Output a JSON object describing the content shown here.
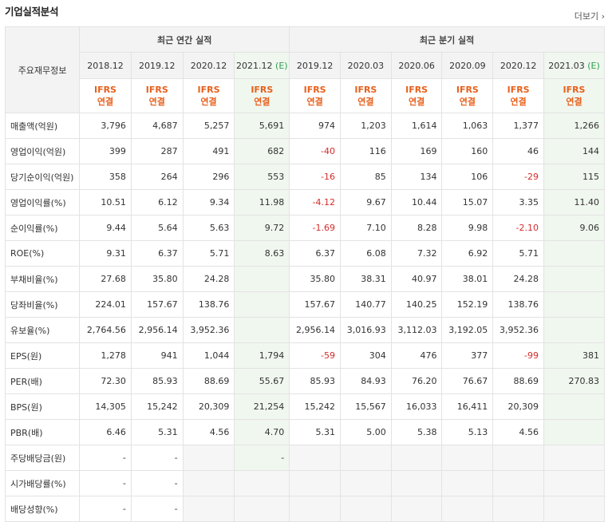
{
  "header": {
    "title": "기업실적분석",
    "more": "더보기"
  },
  "table": {
    "row_header": "주요재무정보",
    "annual_group": "최근 연간 실적",
    "quarter_group": "최근 분기 실적",
    "annual_dates": [
      "2018.12",
      "2019.12",
      "2020.12",
      "2021.12"
    ],
    "quarter_dates": [
      "2019.12",
      "2020.03",
      "2020.06",
      "2020.09",
      "2020.12",
      "2021.03"
    ],
    "estimate_mark": "(E)",
    "ifrs_line1": "IFRS",
    "ifrs_line2": "연결",
    "rows": [
      {
        "label": "매출액(억원)",
        "values": [
          "3,796",
          "4,687",
          "5,257",
          "5,691",
          "974",
          "1,203",
          "1,614",
          "1,063",
          "1,377",
          "1,266"
        ]
      },
      {
        "label": "영업이익(억원)",
        "values": [
          "399",
          "287",
          "491",
          "682",
          "-40",
          "116",
          "169",
          "160",
          "46",
          "144"
        ]
      },
      {
        "label": "당기순이익(억원)",
        "values": [
          "358",
          "264",
          "296",
          "553",
          "-16",
          "85",
          "134",
          "106",
          "-29",
          "115"
        ]
      },
      {
        "label": "영업이익률(%)",
        "values": [
          "10.51",
          "6.12",
          "9.34",
          "11.98",
          "-4.12",
          "9.67",
          "10.44",
          "15.07",
          "3.35",
          "11.40"
        ]
      },
      {
        "label": "순이익률(%)",
        "values": [
          "9.44",
          "5.64",
          "5.63",
          "9.72",
          "-1.69",
          "7.10",
          "8.28",
          "9.98",
          "-2.10",
          "9.06"
        ]
      },
      {
        "label": "ROE(%)",
        "values": [
          "9.31",
          "6.37",
          "5.71",
          "8.63",
          "6.37",
          "6.08",
          "7.32",
          "6.92",
          "5.71",
          ""
        ]
      },
      {
        "label": "부채비율(%)",
        "values": [
          "27.68",
          "35.80",
          "24.28",
          "",
          "35.80",
          "38.31",
          "40.97",
          "38.01",
          "24.28",
          ""
        ]
      },
      {
        "label": "당좌비율(%)",
        "values": [
          "224.01",
          "157.67",
          "138.76",
          "",
          "157.67",
          "140.77",
          "140.25",
          "152.19",
          "138.76",
          ""
        ]
      },
      {
        "label": "유보율(%)",
        "values": [
          "2,764.56",
          "2,956.14",
          "3,952.36",
          "",
          "2,956.14",
          "3,016.93",
          "3,112.03",
          "3,192.05",
          "3,952.36",
          ""
        ]
      },
      {
        "label": "EPS(원)",
        "values": [
          "1,278",
          "941",
          "1,044",
          "1,794",
          "-59",
          "304",
          "476",
          "377",
          "-99",
          "381"
        ]
      },
      {
        "label": "PER(배)",
        "values": [
          "72.30",
          "85.93",
          "88.69",
          "55.67",
          "85.93",
          "84.93",
          "76.20",
          "76.67",
          "88.69",
          "270.83"
        ]
      },
      {
        "label": "BPS(원)",
        "values": [
          "14,305",
          "15,242",
          "20,309",
          "21,254",
          "15,242",
          "15,567",
          "16,033",
          "16,411",
          "20,309",
          ""
        ]
      },
      {
        "label": "PBR(배)",
        "values": [
          "6.46",
          "5.31",
          "4.56",
          "4.70",
          "5.31",
          "5.00",
          "5.38",
          "5.13",
          "4.56",
          ""
        ]
      },
      {
        "label": "주당배당금(원)",
        "values": [
          "-",
          "-",
          "",
          "-",
          "",
          "",
          "",
          "",
          "",
          ""
        ]
      },
      {
        "label": "시가배당률(%)",
        "values": [
          "-",
          "-",
          "",
          "",
          "",
          "",
          "",
          "",
          "",
          ""
        ]
      },
      {
        "label": "배당성향(%)",
        "values": [
          "-",
          "-",
          "",
          "",
          "",
          "",
          "",
          "",
          "",
          ""
        ]
      }
    ]
  },
  "colors": {
    "negative": "#d62b2b",
    "ifrs": "#e8601c",
    "estimate_bg": "#f0f7ef",
    "estimate_mark": "#2e9e4f"
  }
}
